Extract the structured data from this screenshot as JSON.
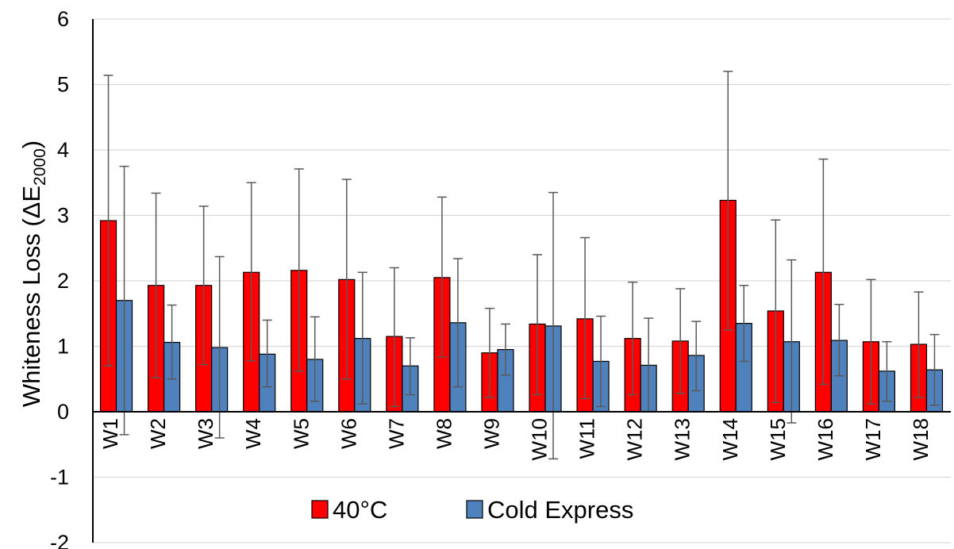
{
  "chart_data": {
    "type": "bar",
    "ylabel": "Whiteness Loss (ΔE",
    "ylabel_sub": "2000",
    "ylabel_close": ")",
    "ylim": [
      -2,
      6
    ],
    "yticks": [
      -2,
      -1,
      0,
      1,
      2,
      3,
      4,
      5,
      6
    ],
    "grid": true,
    "legend_position": "bottom-center",
    "categories": [
      "W1",
      "W2",
      "W3",
      "W4",
      "W5",
      "W6",
      "W7",
      "W8",
      "W9",
      "W10",
      "W11",
      "W12",
      "W13",
      "W14",
      "W15",
      "W16",
      "W17",
      "W18"
    ],
    "series": [
      {
        "name": "40°C",
        "color": "#ff0000",
        "values": [
          2.92,
          1.93,
          1.93,
          2.13,
          2.16,
          2.02,
          1.15,
          2.05,
          0.9,
          1.34,
          1.42,
          1.12,
          1.08,
          3.23,
          1.54,
          2.13,
          1.07,
          1.03
        ],
        "error_low": [
          0.7,
          0.52,
          0.72,
          0.78,
          0.62,
          0.5,
          0.08,
          0.84,
          0.22,
          0.26,
          0.2,
          0.26,
          0.28,
          1.25,
          0.14,
          0.42,
          0.12,
          0.22
        ],
        "error_high": [
          5.14,
          3.34,
          3.14,
          3.5,
          3.71,
          3.55,
          2.2,
          3.28,
          1.58,
          2.4,
          2.66,
          1.98,
          1.88,
          5.2,
          2.93,
          3.86,
          2.02,
          1.83
        ]
      },
      {
        "name": "Cold Express",
        "color": "#4f81bd",
        "values": [
          1.7,
          1.06,
          0.98,
          0.88,
          0.8,
          1.12,
          0.7,
          1.36,
          0.95,
          1.31,
          0.77,
          0.71,
          0.86,
          1.35,
          1.07,
          1.09,
          0.62,
          0.64
        ],
        "error_low": [
          -0.35,
          0.5,
          -0.4,
          0.38,
          0.16,
          0.12,
          0.26,
          0.38,
          0.56,
          -0.72,
          0.08,
          0.0,
          0.32,
          0.77,
          -0.17,
          0.55,
          0.16,
          0.1
        ],
        "error_high": [
          3.75,
          1.63,
          2.37,
          1.4,
          1.45,
          2.13,
          1.13,
          2.34,
          1.34,
          3.35,
          1.46,
          1.43,
          1.38,
          1.93,
          2.32,
          1.64,
          1.07,
          1.18
        ]
      }
    ]
  }
}
